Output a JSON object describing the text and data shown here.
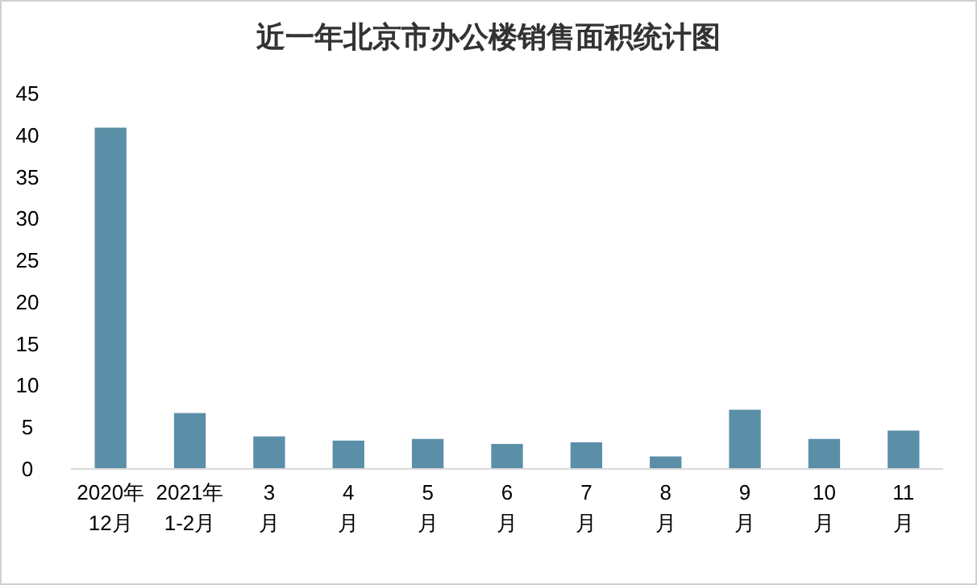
{
  "chart_data": {
    "type": "bar",
    "title": "近一年北京市办公楼销售面积统计图",
    "categories": [
      "2020年\n12月",
      "2021年\n1-2月",
      "3\n月",
      "4\n月",
      "5\n月",
      "6\n月",
      "7\n月",
      "8\n月",
      "9\n月",
      "10\n月",
      "11\n月"
    ],
    "values": [
      40.9,
      6.7,
      3.9,
      3.4,
      3.6,
      3.0,
      3.2,
      1.5,
      7.1,
      3.6,
      4.6
    ],
    "color": "#5b8fa8",
    "ylim": [
      0,
      45
    ],
    "yticks": [
      0,
      5,
      10,
      15,
      20,
      25,
      30,
      35,
      40,
      45
    ]
  }
}
